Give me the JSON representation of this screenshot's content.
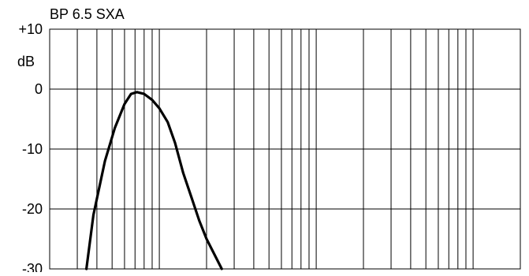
{
  "chart_data": {
    "type": "line",
    "title": "BP 6.5 SXA",
    "ylabel": "dB",
    "x_scale": "log",
    "xlim": [
      20,
      20000
    ],
    "ylim": [
      -30,
      10
    ],
    "yticks": [
      {
        "value": 10,
        "label": "+10"
      },
      {
        "value": 0,
        "label": "0"
      },
      {
        "value": -10,
        "label": "-10"
      },
      {
        "value": -20,
        "label": "-20"
      },
      {
        "value": -30,
        "label": "-30"
      }
    ],
    "grid": true,
    "series": [
      {
        "x": [
          34.3,
          38,
          45,
          52,
          60,
          66,
          72,
          80,
          90,
          100,
          113,
          126,
          142,
          160,
          180,
          200,
          250
        ],
        "y": [
          -30,
          -21,
          -12,
          -6.5,
          -2.5,
          -0.8,
          -0.5,
          -0.8,
          -1.8,
          -3.2,
          -5.5,
          -9,
          -14,
          -18,
          -22,
          -25,
          -30
        ]
      }
    ],
    "line_color": "#000000"
  }
}
